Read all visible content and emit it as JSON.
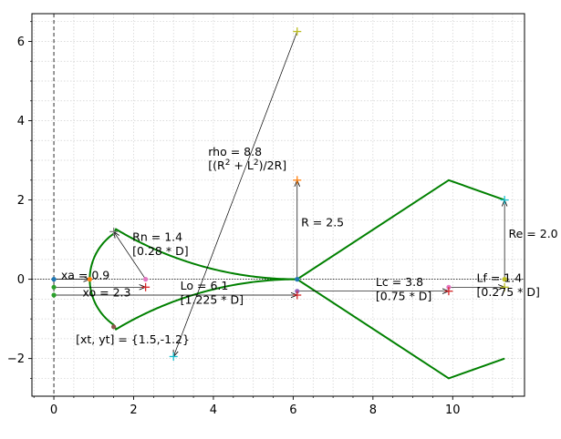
{
  "chart_data": {
    "type": "line",
    "title": "",
    "xlabel": "",
    "ylabel": "",
    "xlim": [
      -0.55,
      11.8
    ],
    "ylim": [
      -2.95,
      6.7
    ],
    "grid": true,
    "minor_grid": true,
    "x_ticks": [
      0,
      2,
      4,
      6,
      8,
      10
    ],
    "y_ticks": [
      -2,
      0,
      2,
      4,
      6
    ],
    "x_tick_labels": [
      "0",
      "2",
      "4",
      "6",
      "8",
      "10"
    ],
    "y_tick_labels": [
      "−2",
      "0",
      "2",
      "4",
      "6"
    ],
    "reference_lines": [
      {
        "orientation": "horizontal",
        "value": 0,
        "style": "dotted"
      },
      {
        "orientation": "vertical",
        "value": 0,
        "style": "dashed"
      }
    ],
    "outline": {
      "color": "#008000",
      "nose_center": [
        2.3,
        0
      ],
      "nose_radius": 1.4,
      "nose_tangent_point": [
        1.5,
        1.2
      ],
      "throat_center": [
        6.1,
        8.8
      ],
      "throat_radius": 8.8,
      "cylinder_radius": 2.5,
      "cylinder_end_x": 9.9,
      "exit_point": [
        11.3,
        2.0
      ]
    },
    "markers": [
      {
        "x": 0,
        "y": 0,
        "color": "#1f77b4",
        "shape": "dot"
      },
      {
        "x": 0,
        "y": -0.2,
        "color": "#2ca02c",
        "shape": "dot"
      },
      {
        "x": 0,
        "y": -0.4,
        "color": "#2ca02c",
        "shape": "dot"
      },
      {
        "x": 0.9,
        "y": 0,
        "color": "#ff7f0e",
        "shape": "dot"
      },
      {
        "x": 2.3,
        "y": 0,
        "color": "#e377c2",
        "shape": "dot"
      },
      {
        "x": 2.3,
        "y": -0.2,
        "color": "#d62728",
        "shape": "plus"
      },
      {
        "x": 1.5,
        "y": 1.2,
        "color": "#7f7f7f",
        "shape": "plus"
      },
      {
        "x": 1.5,
        "y": -1.2,
        "color": "#8c564b",
        "shape": "dot"
      },
      {
        "x": 3.0,
        "y": -1.95,
        "color": "#17becf",
        "shape": "plus"
      },
      {
        "x": 6.1,
        "y": 6.25,
        "color": "#bcbd22",
        "shape": "plus"
      },
      {
        "x": 6.1,
        "y": 2.5,
        "color": "#ff7f0e",
        "shape": "plus"
      },
      {
        "x": 6.1,
        "y": 0,
        "color": "#1f77b4",
        "shape": "dot"
      },
      {
        "x": 6.1,
        "y": -0.3,
        "color": "#9467bd",
        "shape": "dot"
      },
      {
        "x": 6.1,
        "y": -0.4,
        "color": "#d62728",
        "shape": "plus"
      },
      {
        "x": 9.9,
        "y": -0.2,
        "color": "#e377c2",
        "shape": "dot"
      },
      {
        "x": 9.9,
        "y": -0.3,
        "color": "#d62728",
        "shape": "plus"
      },
      {
        "x": 11.3,
        "y": 0,
        "color": "#bcbd22",
        "shape": "dot"
      },
      {
        "x": 11.3,
        "y": -0.2,
        "color": "#bcbd22",
        "shape": "plus"
      },
      {
        "x": 11.3,
        "y": 2.0,
        "color": "#17becf",
        "shape": "plus"
      }
    ],
    "dimension_arrows": [
      {
        "name": "xa",
        "from": [
          0,
          0
        ],
        "to": [
          0.9,
          0
        ]
      },
      {
        "name": "xo",
        "from": [
          0,
          -0.2
        ],
        "to": [
          2.3,
          -0.2
        ]
      },
      {
        "name": "Rn",
        "from": [
          2.3,
          0
        ],
        "to": [
          1.5,
          1.2
        ]
      },
      {
        "name": "rho",
        "from": [
          6.1,
          6.25
        ],
        "to": [
          3.0,
          -1.95
        ]
      },
      {
        "name": "R",
        "from": [
          6.1,
          0
        ],
        "to": [
          6.1,
          2.5
        ]
      },
      {
        "name": "Lo",
        "from": [
          0,
          -0.4
        ],
        "to": [
          6.1,
          -0.4
        ]
      },
      {
        "name": "Lc",
        "from": [
          6.1,
          -0.3
        ],
        "to": [
          9.9,
          -0.3
        ]
      },
      {
        "name": "Lf",
        "from": [
          9.9,
          -0.2
        ],
        "to": [
          11.3,
          -0.2
        ]
      },
      {
        "name": "Re",
        "from": [
          11.3,
          0
        ],
        "to": [
          11.3,
          2.0
        ]
      }
    ],
    "annotations": [
      {
        "name": "xa",
        "x": 0.18,
        "y": 0,
        "lines": [
          "xa = 0.9"
        ]
      },
      {
        "name": "xo",
        "x": 0.72,
        "y": -0.43,
        "lines": [
          "xo = 2.3"
        ]
      },
      {
        "name": "rn",
        "x": 1.97,
        "y": 0.97,
        "lines": [
          "Rn = 1.4",
          "[0.28 * D]"
        ]
      },
      {
        "name": "rho",
        "x": 3.87,
        "y": 3.12,
        "lines": [
          "rho = 8.8"
        ]
      },
      {
        "name": "rho-formula",
        "x": 3.87,
        "y": 2.77,
        "lines": [
          "[(R",
          "2",
          " + L",
          "2",
          ")/2R]"
        ]
      },
      {
        "name": "r",
        "x": 6.2,
        "y": 1.33,
        "lines": [
          "R = 2.5"
        ]
      },
      {
        "name": "lo",
        "x": 3.17,
        "y": -0.26,
        "lines": [
          "Lo = 6.1",
          "[1.225 * D]"
        ]
      },
      {
        "name": "lc",
        "x": 8.07,
        "y": -0.17,
        "lines": [
          "Lc = 3.8",
          "[0.75 * D]"
        ]
      },
      {
        "name": "lf",
        "x": 10.6,
        "y": -0.07,
        "lines": [
          "Lf = 1.4",
          "[0.275 * D]"
        ]
      },
      {
        "name": "re",
        "x": 11.4,
        "y": 1.05,
        "lines": [
          "Re = 2.0"
        ]
      },
      {
        "name": "throat",
        "x": 0.55,
        "y": -1.62,
        "lines": [
          "[xt, yt] = {1.5,-1.2}"
        ]
      }
    ]
  }
}
